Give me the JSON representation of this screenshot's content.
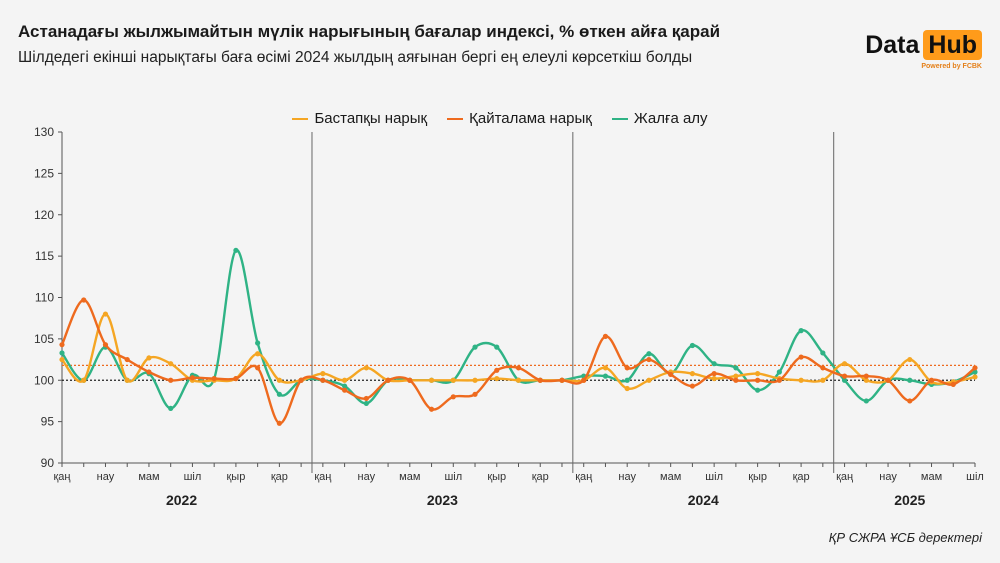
{
  "header": {
    "title": "Астанадағы жылжымайтын мүлік нарығының бағалар индексі, % өткен айға қарай",
    "subtitle": "Шілдедегі екінші нарықтағы баға өсімі 2024 жылдың аяғынан бергі ең елеулі көрсеткіш болды"
  },
  "logo": {
    "data": "Data",
    "hub": "Hub",
    "powered": "Powered by FCBK"
  },
  "source": "ҚР СЖРА ҰСБ деректері",
  "colors": {
    "primary": "#f5a623",
    "secondary": "#ee6a1e",
    "rent": "#2fb385",
    "background": "#f4f4f4"
  },
  "chart_data": {
    "type": "line",
    "ylim": [
      90,
      130
    ],
    "yticks": [
      90,
      95,
      100,
      105,
      110,
      115,
      120,
      125,
      130
    ],
    "reference_lines": [
      {
        "name": "baseline",
        "value": 100,
        "style": "dotted",
        "color": "#222222"
      },
      {
        "name": "secondary-average",
        "value": 101.8,
        "style": "dotted",
        "color": "#ee6a1e"
      }
    ],
    "month_tick_labels": [
      "қаң",
      "нау",
      "мам",
      "шіл",
      "қыр",
      "қар"
    ],
    "years": [
      {
        "label": "2022",
        "months": 12
      },
      {
        "label": "2023",
        "months": 12
      },
      {
        "label": "2024",
        "months": 12
      },
      {
        "label": "2025",
        "months": 7
      }
    ],
    "series": [
      {
        "name": "Бастапқы нарық",
        "color": "#f5a623",
        "values": [
          102.5,
          100,
          108,
          100,
          102.7,
          102,
          100,
          100,
          100.2,
          103.2,
          100,
          100,
          100.8,
          100,
          101.5,
          100,
          100,
          100,
          100,
          100,
          100.2,
          100,
          100,
          100,
          100,
          101.5,
          99,
          100,
          101,
          100.8,
          100.2,
          100.5,
          100.8,
          100.2,
          100,
          100,
          102,
          100,
          100,
          102.5,
          99.8,
          99.8,
          100.4
        ]
      },
      {
        "name": "Қайталама нарық",
        "color": "#ee6a1e",
        "values": [
          104.3,
          109.7,
          104.3,
          102.5,
          101,
          100,
          100.3,
          100.2,
          100.2,
          101.5,
          94.8,
          100,
          100,
          98.8,
          97.8,
          100,
          100,
          96.5,
          98,
          98.3,
          101.2,
          101.5,
          100,
          100,
          100,
          105.3,
          101.5,
          102.5,
          100.7,
          99.3,
          100.8,
          100,
          100,
          100,
          102.8,
          101.5,
          100.5,
          100.5,
          100,
          97.5,
          100,
          99.5,
          101.5
        ]
      },
      {
        "name": "Жалға алу",
        "color": "#2fb385",
        "values": [
          103.3,
          100,
          104,
          100,
          100.8,
          96.6,
          100.6,
          100.2,
          115.7,
          104.5,
          98.3,
          100,
          100,
          99.3,
          97.2,
          100,
          100,
          100,
          100,
          104,
          104,
          100,
          100,
          100,
          100.5,
          100.5,
          100,
          103.2,
          100.8,
          104.2,
          102,
          101.5,
          98.8,
          101,
          106,
          103.3,
          100,
          97.5,
          100,
          100,
          99.5,
          99.8,
          101
        ]
      }
    ],
    "legend_position": "top-center",
    "xlabel": "",
    "ylabel": ""
  }
}
